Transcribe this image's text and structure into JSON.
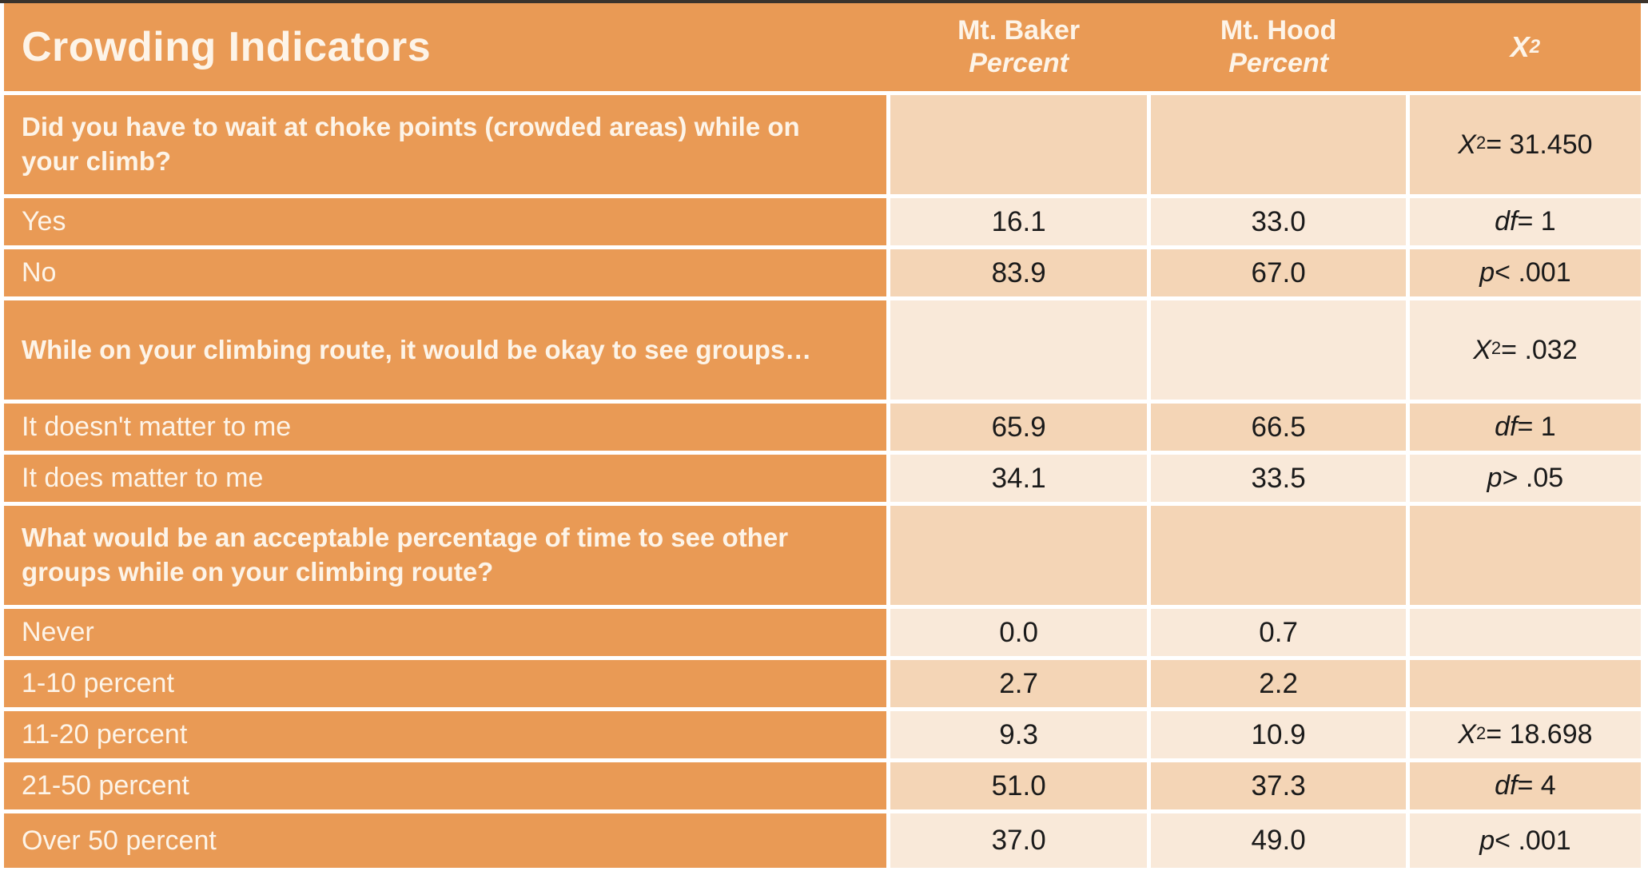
{
  "colors": {
    "orange": "#e99a55",
    "light": "#f9e9d9",
    "peach": "#f4d5b6",
    "top_border": "#3a332c",
    "page_bg": "#ffffff",
    "white_text": "#fdf4e8",
    "value_text": "#1a1a1a"
  },
  "chart_data": {
    "type": "table",
    "title": "Crowding Indicators",
    "header": {
      "title": "Crowding Indicators",
      "baker_line1": "Mt. Baker",
      "baker_line2": "Percent",
      "hood_line1": "Mt. Hood",
      "hood_line2": "Percent",
      "chi": {
        "var": "X",
        "sup": "2",
        "rest": ""
      }
    },
    "columns": [
      "Crowding Indicators",
      "Mt. Baker Percent",
      "Mt. Hood Percent",
      "X2"
    ],
    "rows": [
      {
        "type": "question",
        "label": "Did you have to wait at choke points (crowded areas) while on your climb?",
        "baker": "",
        "hood": "",
        "chi": {
          "var": "X",
          "sup": "2",
          "rest": " = 31.450"
        },
        "tint": "peach"
      },
      {
        "type": "option",
        "label": "Yes",
        "baker": "16.1",
        "hood": "33.0",
        "chi": {
          "var": "df",
          "sup": "",
          "rest": " = 1"
        },
        "tint": "light"
      },
      {
        "type": "option",
        "label": "No",
        "baker": "83.9",
        "hood": "67.0",
        "chi": {
          "var": "p",
          "sup": "",
          "rest": " < .001"
        },
        "tint": "peach"
      },
      {
        "type": "question",
        "label": "While on your climbing route, it would be okay to see groups…",
        "baker": "",
        "hood": "",
        "chi": {
          "var": "X",
          "sup": "2",
          "rest": " = .032"
        },
        "tint": "light"
      },
      {
        "type": "option",
        "label": "It doesn't matter to me",
        "baker": "65.9",
        "hood": "66.5",
        "chi": {
          "var": "df",
          "sup": "",
          "rest": " = 1"
        },
        "tint": "peach"
      },
      {
        "type": "option",
        "label": "It does matter to me",
        "baker": "34.1",
        "hood": "33.5",
        "chi": {
          "var": "p",
          "sup": "",
          "rest": " > .05"
        },
        "tint": "light"
      },
      {
        "type": "question",
        "label": "What would be an acceptable percentage of time to see other groups while on your climbing route?",
        "baker": "",
        "hood": "",
        "chi": {
          "var": "",
          "sup": "",
          "rest": ""
        },
        "tint": "peach"
      },
      {
        "type": "option",
        "label": "Never",
        "baker": "0.0",
        "hood": "0.7",
        "chi": {
          "var": "",
          "sup": "",
          "rest": ""
        },
        "tint": "light"
      },
      {
        "type": "option",
        "label": "1-10 percent",
        "baker": "2.7",
        "hood": "2.2",
        "chi": {
          "var": "",
          "sup": "",
          "rest": ""
        },
        "tint": "peach"
      },
      {
        "type": "option",
        "label": "11-20 percent",
        "baker": "9.3",
        "hood": "10.9",
        "chi": {
          "var": "X",
          "sup": "2",
          "rest": " = 18.698"
        },
        "tint": "light"
      },
      {
        "type": "option",
        "label": "21-50 percent",
        "baker": "51.0",
        "hood": "37.3",
        "chi": {
          "var": "df",
          "sup": "",
          "rest": " = 4"
        },
        "tint": "peach"
      },
      {
        "type": "option",
        "label": "Over 50 percent",
        "baker": "37.0",
        "hood": "49.0",
        "chi": {
          "var": "p",
          "sup": "",
          "rest": " < .001"
        },
        "tint": "light"
      }
    ]
  }
}
